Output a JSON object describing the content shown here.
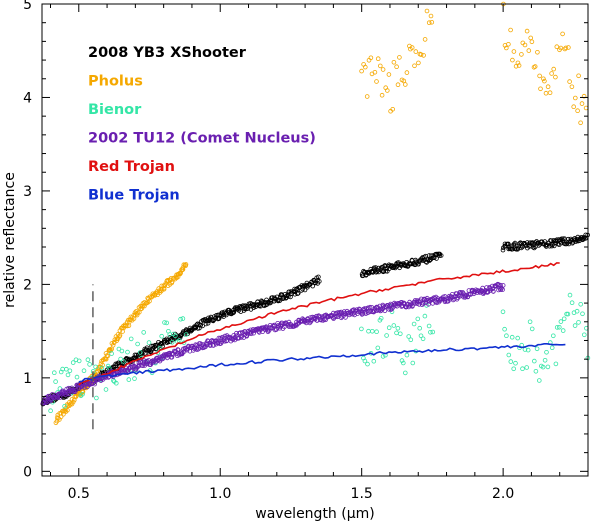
{
  "chart_data": {
    "type": "scatter",
    "xlabel": "wavelength (μm)",
    "ylabel": "relative reflectance",
    "xlim": [
      0.37,
      2.3
    ],
    "ylim": [
      -0.05,
      5.0
    ],
    "x_ticks": [
      0.5,
      1.0,
      1.5,
      2.0
    ],
    "x_tick_labels": [
      "0.5",
      "1.0",
      "1.5",
      "2.0"
    ],
    "y_ticks": [
      0,
      1,
      2,
      3,
      4,
      5
    ],
    "y_tick_labels": [
      "0",
      "1",
      "2",
      "3",
      "4",
      "5"
    ],
    "reference_line_x": 0.55,
    "reference_line_y_range": [
      0.45,
      2.0
    ],
    "series": [
      {
        "name": "2008 YB3 XShooter",
        "color": "#000000",
        "style": "open-circles",
        "segments": [
          {
            "x": [
              0.37,
              0.45,
              0.55,
              0.65,
              0.75,
              0.85,
              0.95,
              1.05,
              1.15,
              1.25,
              1.35
            ],
            "y": [
              0.75,
              0.82,
              0.98,
              1.15,
              1.3,
              1.45,
              1.6,
              1.72,
              1.8,
              1.9,
              2.05
            ]
          },
          {
            "x": [
              1.5,
              1.6,
              1.7,
              1.78
            ],
            "y": [
              2.12,
              2.18,
              2.25,
              2.3
            ]
          },
          {
            "x": [
              2.0,
              2.1,
              2.2,
              2.3
            ],
            "y": [
              2.4,
              2.42,
              2.45,
              2.5
            ]
          }
        ]
      },
      {
        "name": "Pholus",
        "color": "#f5a800",
        "style": "open-circles",
        "segments": [
          {
            "x": [
              0.42,
              0.55,
              0.65,
              0.75,
              0.85,
              0.88
            ],
            "y": [
              0.55,
              1.0,
              1.5,
              1.85,
              2.1,
              2.22
            ]
          },
          {
            "x": [
              1.5,
              1.55,
              1.6,
              1.65,
              1.7,
              1.75
            ],
            "y": [
              4.2,
              4.3,
              4.05,
              4.35,
              4.5,
              4.8
            ]
          },
          {
            "x": [
              2.0,
              2.05,
              2.1,
              2.15,
              2.2,
              2.25,
              2.3
            ],
            "y": [
              4.8,
              4.2,
              4.6,
              3.9,
              4.7,
              4.1,
              3.8
            ]
          }
        ]
      },
      {
        "name": "Bienor",
        "color": "#33e6a6",
        "style": "open-circles",
        "segments": [
          {
            "x": [
              0.4,
              0.45,
              0.5,
              0.55,
              0.6,
              0.7,
              0.8,
              0.88
            ],
            "y": [
              0.85,
              0.92,
              0.97,
              1.0,
              1.08,
              1.2,
              1.35,
              1.5
            ]
          },
          {
            "x": [
              1.5,
              1.55,
              1.6,
              1.65,
              1.7,
              1.75
            ],
            "y": [
              1.4,
              1.3,
              1.55,
              1.2,
              1.45,
              1.7
            ]
          },
          {
            "x": [
              2.0,
              2.05,
              2.1,
              2.15,
              2.2,
              2.25,
              2.3
            ],
            "y": [
              1.6,
              1.2,
              1.4,
              1.0,
              1.5,
              1.8,
              1.3
            ]
          }
        ]
      },
      {
        "name": "2002 TU12 (Comet Nucleus)",
        "color": "#6a1fb0",
        "style": "open-circles",
        "segments": [
          {
            "x": [
              0.37,
              0.5,
              0.6,
              0.7,
              0.8,
              0.9,
              1.0,
              1.2,
              1.4,
              1.6,
              1.8,
              2.0
            ],
            "y": [
              0.75,
              0.9,
              1.02,
              1.12,
              1.22,
              1.32,
              1.4,
              1.55,
              1.66,
              1.76,
              1.85,
              1.98
            ]
          }
        ]
      },
      {
        "name": "Red Trojan",
        "color": "#e01010",
        "style": "line",
        "segments": [
          {
            "x": [
              0.5,
              0.6,
              0.7,
              0.8,
              0.9,
              1.0,
              1.2,
              1.4,
              1.6,
              1.8,
              2.0,
              2.2
            ],
            "y": [
              0.93,
              1.05,
              1.18,
              1.3,
              1.42,
              1.52,
              1.7,
              1.84,
              1.96,
              2.06,
              2.14,
              2.22
            ]
          }
        ]
      },
      {
        "name": "Blue Trojan",
        "color": "#1030d0",
        "style": "line",
        "segments": [
          {
            "x": [
              0.5,
              0.6,
              0.7,
              0.8,
              0.9,
              1.0,
              1.2,
              1.4,
              1.6,
              1.8,
              2.0,
              2.22
            ],
            "y": [
              0.97,
              1.02,
              1.05,
              1.08,
              1.1,
              1.14,
              1.19,
              1.23,
              1.27,
              1.3,
              1.33,
              1.36
            ]
          }
        ]
      }
    ],
    "legend": [
      {
        "label": "2008 YB3 XShooter",
        "color": "#000000"
      },
      {
        "label": "Pholus",
        "color": "#f5a800"
      },
      {
        "label": "Bienor",
        "color": "#33e6a6"
      },
      {
        "label": "2002 TU12 (Comet Nucleus)",
        "color": "#6a1fb0"
      },
      {
        "label": "Red Trojan",
        "color": "#e01010"
      },
      {
        "label": "Blue Trojan",
        "color": "#1030d0"
      }
    ]
  }
}
